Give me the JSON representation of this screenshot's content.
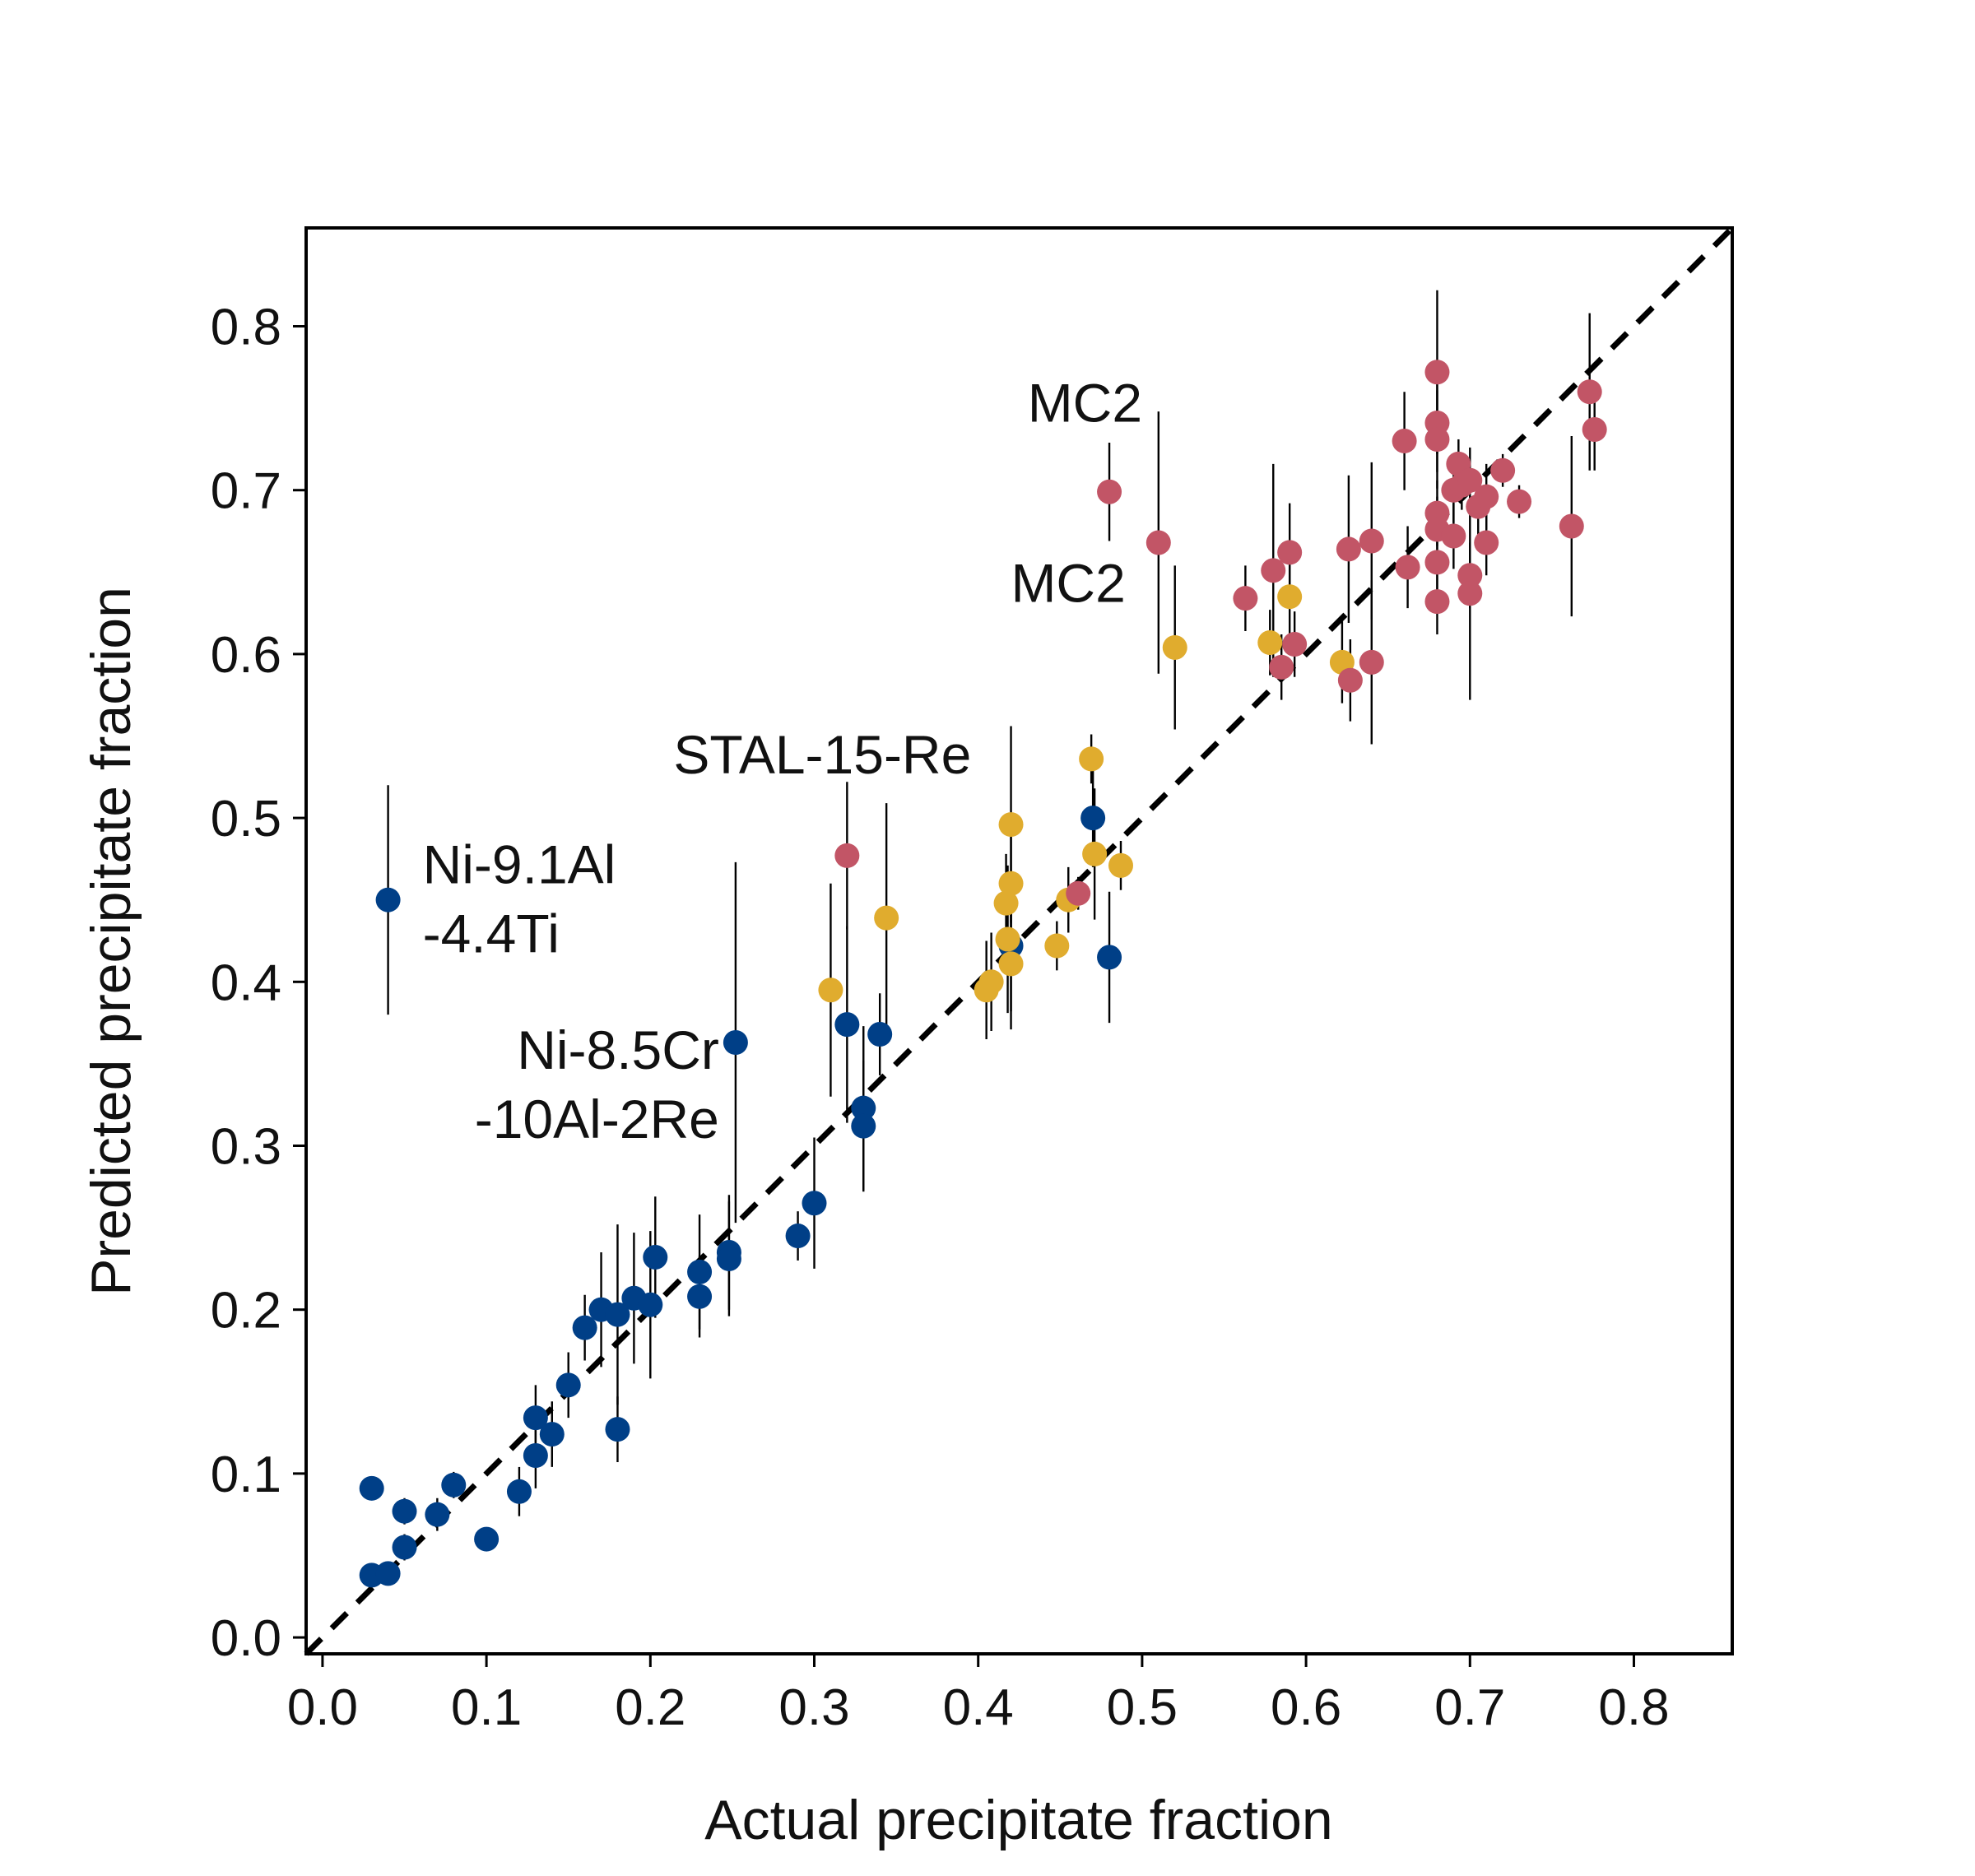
{
  "chart_data": {
    "type": "scatter",
    "title": "",
    "xlabel": "Actual precipitate fraction",
    "ylabel": "Predicted precipitate fraction",
    "xlim": [
      -0.01,
      0.86
    ],
    "ylim": [
      -0.01,
      0.86
    ],
    "xticks": [
      "0.0",
      "0.1",
      "0.2",
      "0.3",
      "0.4",
      "0.5",
      "0.6",
      "0.7",
      "0.8"
    ],
    "yticks": [
      "0.0",
      "0.1",
      "0.2",
      "0.3",
      "0.4",
      "0.5",
      "0.6",
      "0.7",
      "0.8"
    ],
    "grid": false,
    "legend": "none",
    "reference_line": {
      "style": "dashed",
      "color": "#000000",
      "from": [
        -0.01,
        -0.01
      ],
      "to": [
        0.86,
        0.86
      ]
    },
    "colors": {
      "blue": "#003f87",
      "gold": "#e0ac2e",
      "red": "#c25566"
    },
    "series": [
      {
        "color": "#003f87",
        "points": [
          {
            "x": 0.03,
            "y": 0.091
          },
          {
            "x": 0.03,
            "y": 0.038,
            "err": 0.005
          },
          {
            "x": 0.04,
            "y": 0.039,
            "err": 0.005
          },
          {
            "x": 0.05,
            "y": 0.077,
            "err": 0.008
          },
          {
            "x": 0.05,
            "y": 0.055,
            "err": 0.008
          },
          {
            "x": 0.07,
            "y": 0.075,
            "err": 0.01
          },
          {
            "x": 0.08,
            "y": 0.093,
            "err": 0.008
          },
          {
            "x": 0.1,
            "y": 0.06
          },
          {
            "x": 0.12,
            "y": 0.089,
            "err": 0.015
          },
          {
            "x": 0.13,
            "y": 0.134,
            "err": 0.02
          },
          {
            "x": 0.13,
            "y": 0.111,
            "err": 0.02
          },
          {
            "x": 0.14,
            "y": 0.124,
            "err": 0.02
          },
          {
            "x": 0.15,
            "y": 0.154,
            "err": 0.02
          },
          {
            "x": 0.16,
            "y": 0.189,
            "err": 0.02
          },
          {
            "x": 0.17,
            "y": 0.2,
            "err": 0.035
          },
          {
            "x": 0.18,
            "y": 0.197,
            "err": 0.055
          },
          {
            "x": 0.18,
            "y": 0.127,
            "err": 0.02
          },
          {
            "x": 0.19,
            "y": 0.207,
            "err": 0.04
          },
          {
            "x": 0.2,
            "y": 0.203,
            "err": 0.045
          },
          {
            "x": 0.203,
            "y": 0.232,
            "err": 0.037
          },
          {
            "x": 0.23,
            "y": 0.223,
            "err": 0.035
          },
          {
            "x": 0.23,
            "y": 0.208,
            "err": 0.025
          },
          {
            "x": 0.248,
            "y": 0.235,
            "err": 0.035
          },
          {
            "x": 0.248,
            "y": 0.231,
            "err": 0.035
          },
          {
            "x": 0.29,
            "y": 0.245,
            "err": 0.015
          },
          {
            "x": 0.3,
            "y": 0.265,
            "err": 0.04
          },
          {
            "x": 0.32,
            "y": 0.374,
            "err": 0.06
          },
          {
            "x": 0.33,
            "y": 0.323,
            "err": 0.05
          },
          {
            "x": 0.33,
            "y": 0.312,
            "err": 0.04
          },
          {
            "x": 0.34,
            "y": 0.368,
            "err": 0.025
          },
          {
            "x": 0.252,
            "y": 0.363,
            "err": 0.11
          },
          {
            "x": 0.04,
            "y": 0.45,
            "err": 0.07
          },
          {
            "x": 0.42,
            "y": 0.422,
            "err": 0.04
          },
          {
            "x": 0.47,
            "y": 0.5,
            "err": 0.03
          },
          {
            "x": 0.48,
            "y": 0.415,
            "err": 0.04
          }
        ]
      },
      {
        "color": "#e0ac2e",
        "points": [
          {
            "x": 0.31,
            "y": 0.395,
            "err": 0.065
          },
          {
            "x": 0.344,
            "y": 0.439,
            "err": 0.07
          },
          {
            "x": 0.405,
            "y": 0.395,
            "err": 0.03
          },
          {
            "x": 0.408,
            "y": 0.4,
            "err": 0.03
          },
          {
            "x": 0.417,
            "y": 0.448,
            "err": 0.03
          },
          {
            "x": 0.418,
            "y": 0.426,
            "err": 0.045
          },
          {
            "x": 0.42,
            "y": 0.496,
            "err": 0.06
          },
          {
            "x": 0.42,
            "y": 0.46,
            "err": 0.03
          },
          {
            "x": 0.42,
            "y": 0.411,
            "err": 0.04
          },
          {
            "x": 0.448,
            "y": 0.422,
            "err": 0.015
          },
          {
            "x": 0.455,
            "y": 0.45,
            "err": 0.02
          },
          {
            "x": 0.469,
            "y": 0.536,
            "err": 0.015
          },
          {
            "x": 0.471,
            "y": 0.478,
            "err": 0.04
          },
          {
            "x": 0.487,
            "y": 0.471,
            "err": 0.015
          },
          {
            "x": 0.52,
            "y": 0.604,
            "err": 0.05
          },
          {
            "x": 0.578,
            "y": 0.607,
            "err": 0.02
          },
          {
            "x": 0.59,
            "y": 0.635,
            "err": 0.03
          },
          {
            "x": 0.622,
            "y": 0.595,
            "err": 0.025
          }
        ]
      },
      {
        "color": "#c25566",
        "points": [
          {
            "x": 0.32,
            "y": 0.477,
            "err": 0.045
          },
          {
            "x": 0.461,
            "y": 0.454,
            "err": 0.01
          },
          {
            "x": 0.48,
            "y": 0.699,
            "err": 0.03
          },
          {
            "x": 0.51,
            "y": 0.668,
            "err": 0.08
          },
          {
            "x": 0.563,
            "y": 0.634,
            "err": 0.02
          },
          {
            "x": 0.58,
            "y": 0.651,
            "err": 0.065
          },
          {
            "x": 0.585,
            "y": 0.592,
            "err": 0.02
          },
          {
            "x": 0.59,
            "y": 0.662,
            "err": 0.03
          },
          {
            "x": 0.593,
            "y": 0.606,
            "err": 0.02
          },
          {
            "x": 0.626,
            "y": 0.664,
            "err": 0.045
          },
          {
            "x": 0.627,
            "y": 0.584,
            "err": 0.025
          },
          {
            "x": 0.64,
            "y": 0.669,
            "err": 0.048
          },
          {
            "x": 0.64,
            "y": 0.595,
            "err": 0.05
          },
          {
            "x": 0.66,
            "y": 0.73,
            "err": 0.03
          },
          {
            "x": 0.662,
            "y": 0.653,
            "err": 0.025
          },
          {
            "x": 0.68,
            "y": 0.772,
            "err": 0.05
          },
          {
            "x": 0.68,
            "y": 0.741,
            "err": 0.03
          },
          {
            "x": 0.68,
            "y": 0.731,
            "err": 0.03
          },
          {
            "x": 0.68,
            "y": 0.686,
            "err": 0.02
          },
          {
            "x": 0.68,
            "y": 0.676,
            "err": 0.02
          },
          {
            "x": 0.68,
            "y": 0.656,
            "err": 0.02
          },
          {
            "x": 0.68,
            "y": 0.632,
            "err": 0.02
          },
          {
            "x": 0.69,
            "y": 0.7,
            "err": 0.02
          },
          {
            "x": 0.69,
            "y": 0.672,
            "err": 0.02
          },
          {
            "x": 0.693,
            "y": 0.716,
            "err": 0.015
          },
          {
            "x": 0.695,
            "y": 0.703,
            "err": 0.015
          },
          {
            "x": 0.7,
            "y": 0.706,
            "err": 0.02
          },
          {
            "x": 0.7,
            "y": 0.648,
            "err": 0.02
          },
          {
            "x": 0.7,
            "y": 0.637,
            "err": 0.065
          },
          {
            "x": 0.705,
            "y": 0.69,
            "err": 0.02
          },
          {
            "x": 0.71,
            "y": 0.696,
            "err": 0.02
          },
          {
            "x": 0.71,
            "y": 0.668,
            "err": 0.02
          },
          {
            "x": 0.72,
            "y": 0.712,
            "err": 0.01
          },
          {
            "x": 0.73,
            "y": 0.693,
            "err": 0.01
          },
          {
            "x": 0.762,
            "y": 0.678,
            "err": 0.055
          },
          {
            "x": 0.773,
            "y": 0.76,
            "err": 0.048
          },
          {
            "x": 0.776,
            "y": 0.737,
            "err": 0.025
          }
        ]
      }
    ],
    "annotations": [
      {
        "lines": [
          "MC2"
        ],
        "x": 0.48,
        "y": 0.699,
        "anchor": "above-left"
      },
      {
        "lines": [
          "MC2"
        ],
        "x": 0.51,
        "y": 0.668,
        "anchor": "below-left"
      },
      {
        "lines": [
          "STAL-15-Re"
        ],
        "x": 0.32,
        "y": 0.477,
        "anchor": "above"
      },
      {
        "lines": [
          "Ni-9.1Al",
          "-4.4Ti"
        ],
        "x": 0.04,
        "y": 0.45,
        "anchor": "right"
      },
      {
        "lines": [
          "Ni-8.5Cr",
          "-10Al-2Re"
        ],
        "x": 0.252,
        "y": 0.363,
        "anchor": "left"
      }
    ]
  }
}
